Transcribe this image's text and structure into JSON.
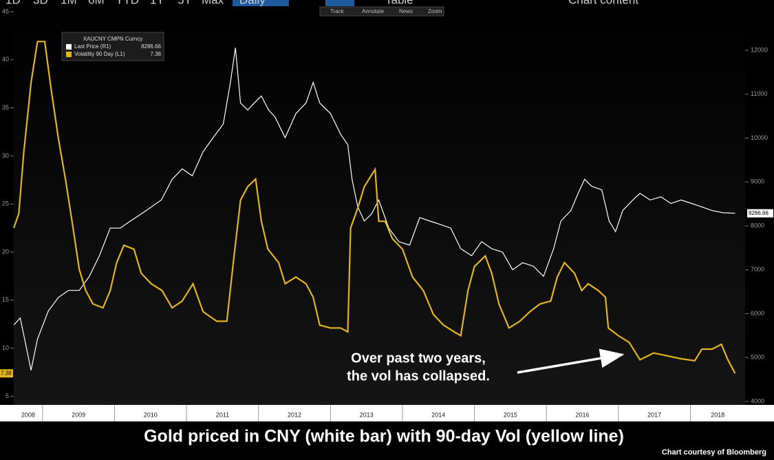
{
  "toolbar": {
    "ranges": [
      "1D",
      "3D",
      "1M",
      "6M",
      "YTD",
      "1Y",
      "5Y",
      "Max"
    ],
    "frequency": "Daily",
    "table": "Table",
    "chart_content": "Chart content",
    "tools": [
      "Track",
      "Annotate",
      "News",
      "Zoom"
    ]
  },
  "chart_data": {
    "type": "line",
    "title": "Gold priced in CNY (white bar) with 90-day Vol (yellow line)",
    "source": "Chart courtesy of Bloomberg",
    "legend_title": "XAUCNY CMPN Curncy",
    "annotation": [
      "Over past two years,",
      "the vol has collapsed."
    ],
    "xlim": [
      2008.6,
      2018.76
    ],
    "xticks": [
      2008,
      2009,
      2010,
      2011,
      2012,
      2013,
      2014,
      2015,
      2016,
      2017,
      2018
    ],
    "ylim": [
      4.1,
      45.5
    ],
    "yticks": [
      5,
      10,
      15,
      20,
      25,
      30,
      35,
      40,
      45
    ],
    "y2lim": [
      3920,
      12990
    ],
    "y2ticks": [
      4000,
      5000,
      6000,
      7000,
      8000,
      9000,
      10000,
      11000,
      12000
    ],
    "series": [
      {
        "name": "Last Price  (R1)",
        "color": "#ffffff",
        "axis": "y2",
        "x": [
          2008.6,
          2008.69,
          2008.79,
          2008.84,
          2008.93,
          2009.08,
          2009.22,
          2009.36,
          2009.51,
          2009.65,
          2009.79,
          2009.94,
          2010.08,
          2010.22,
          2010.37,
          2010.51,
          2010.65,
          2010.8,
          2010.94,
          2011.08,
          2011.23,
          2011.37,
          2011.51,
          2011.61,
          2011.68,
          2011.75,
          2011.85,
          2011.94,
          2012.04,
          2012.14,
          2012.23,
          2012.37,
          2012.52,
          2012.66,
          2012.76,
          2012.85,
          2013.0,
          2013.14,
          2013.24,
          2013.3,
          2013.38,
          2013.47,
          2013.57,
          2013.67,
          2013.81,
          2013.95,
          2014.1,
          2014.24,
          2014.38,
          2014.53,
          2014.67,
          2014.81,
          2014.96,
          2015.1,
          2015.24,
          2015.39,
          2015.53,
          2015.67,
          2015.82,
          2015.96,
          2016.1,
          2016.2,
          2016.34,
          2016.44,
          2016.53,
          2016.63,
          2016.77,
          2016.87,
          2016.96,
          2017.06,
          2017.2,
          2017.3,
          2017.44,
          2017.59,
          2017.73,
          2017.87,
          2018.02,
          2018.16,
          2018.3,
          2018.45,
          2018.62
        ],
        "values": [
          5740,
          5900,
          5110,
          4710,
          5420,
          6060,
          6370,
          6530,
          6530,
          6850,
          7320,
          7950,
          7950,
          8110,
          8270,
          8430,
          8590,
          9060,
          9300,
          9140,
          9690,
          10010,
          10320,
          11270,
          12060,
          10800,
          10640,
          10800,
          10960,
          10640,
          10480,
          10010,
          10560,
          10800,
          11270,
          10800,
          10560,
          10090,
          9850,
          9060,
          8430,
          8110,
          8270,
          8590,
          7950,
          7640,
          7560,
          8190,
          8110,
          8030,
          7950,
          7480,
          7320,
          7640,
          7480,
          7400,
          7000,
          7160,
          7080,
          6850,
          7480,
          8110,
          8350,
          8740,
          9060,
          8900,
          8820,
          8110,
          7870,
          8350,
          8590,
          8740,
          8590,
          8660,
          8510,
          8590,
          8510,
          8430,
          8350,
          8300,
          8286.66
        ]
      },
      {
        "name": "Volatility 90 Day  (L1)",
        "color": "#e3b51c",
        "axis": "y",
        "x": [
          2008.6,
          2008.67,
          2008.74,
          2008.84,
          2008.93,
          2009.03,
          2009.12,
          2009.22,
          2009.32,
          2009.41,
          2009.51,
          2009.6,
          2009.7,
          2009.84,
          2009.94,
          2010.03,
          2010.13,
          2010.27,
          2010.37,
          2010.51,
          2010.66,
          2010.8,
          2010.94,
          2011.09,
          2011.23,
          2011.42,
          2011.56,
          2011.66,
          2011.75,
          2011.85,
          2011.96,
          2012.04,
          2012.13,
          2012.28,
          2012.37,
          2012.52,
          2012.66,
          2012.76,
          2012.85,
          2013.0,
          2013.14,
          2013.24,
          2013.28,
          2013.38,
          2013.47,
          2013.62,
          2013.67,
          2013.76,
          2013.86,
          2014.0,
          2014.14,
          2014.29,
          2014.43,
          2014.57,
          2014.72,
          2014.81,
          2014.91,
          2015.0,
          2015.15,
          2015.24,
          2015.34,
          2015.48,
          2015.63,
          2015.77,
          2015.91,
          2016.06,
          2016.15,
          2016.25,
          2016.39,
          2016.49,
          2016.58,
          2016.72,
          2016.82,
          2016.86,
          2017.0,
          2017.15,
          2017.3,
          2017.49,
          2017.68,
          2017.87,
          2018.06,
          2018.16,
          2018.3,
          2018.43,
          2018.52,
          2018.62
        ],
        "values": [
          22.5,
          24,
          30.4,
          37.6,
          41.9,
          41.9,
          36.9,
          31.8,
          27.5,
          23.2,
          18.2,
          16,
          14.6,
          14.2,
          16,
          18.9,
          20.7,
          20.3,
          17.8,
          16.7,
          16,
          14.2,
          14.9,
          16.7,
          13.8,
          12.8,
          12.8,
          19.6,
          25.4,
          26.8,
          27.6,
          23.2,
          20.3,
          18.9,
          16.7,
          17.4,
          16.7,
          15.3,
          12.4,
          12.1,
          12.1,
          11.7,
          22.5,
          24.6,
          26.8,
          28.6,
          23.2,
          23.2,
          21.4,
          20.3,
          17.4,
          16,
          13.5,
          12.4,
          11.7,
          11.3,
          16,
          18.5,
          19.6,
          17.8,
          14.6,
          12.1,
          12.8,
          13.8,
          14.6,
          14.9,
          17.4,
          18.9,
          17.8,
          16,
          16.7,
          16,
          15.3,
          12.1,
          11.3,
          10.6,
          8.8,
          9.5,
          9.2,
          8.9,
          8.7,
          9.9,
          9.9,
          10.4,
          8.8,
          7.38
        ]
      }
    ]
  }
}
